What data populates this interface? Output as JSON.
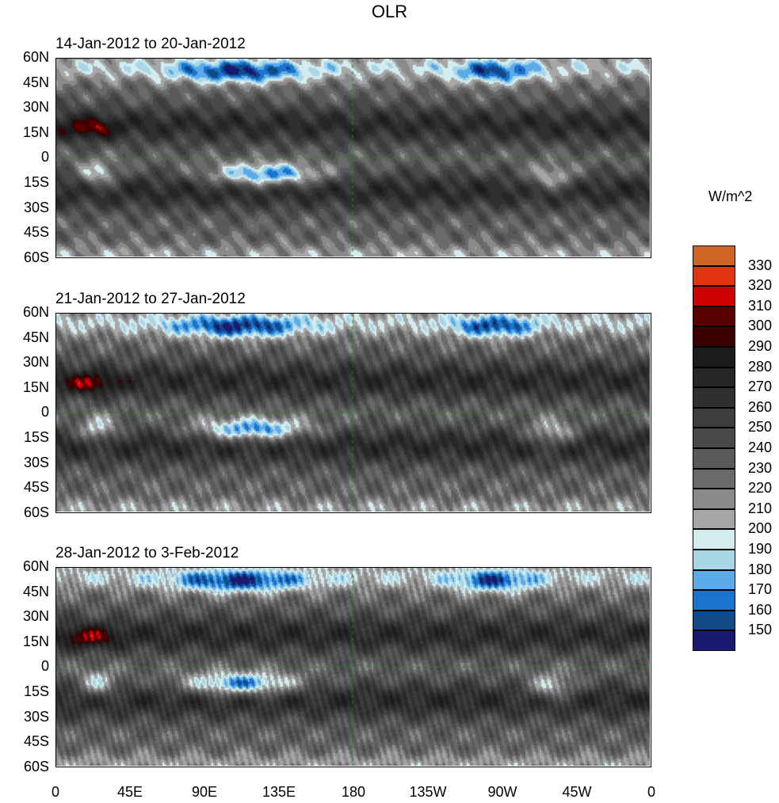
{
  "title": "OLR",
  "units": "W/m^2",
  "panels": [
    {
      "title": "14-Jan-2012 to 20-Jan-2012",
      "seed": 1
    },
    {
      "title": "21-Jan-2012 to 27-Jan-2012",
      "seed": 2
    },
    {
      "title": "28-Jan-2012 to 3-Feb-2012",
      "seed": 3
    }
  ],
  "lat_labels": [
    "60N",
    "45N",
    "30N",
    "15N",
    "0",
    "15S",
    "30S",
    "45S",
    "60S"
  ],
  "lon_labels": [
    "0",
    "45E",
    "90E",
    "135E",
    "180",
    "135W",
    "90W",
    "45W",
    "0"
  ],
  "colorbar": {
    "levels": [
      "150",
      "160",
      "170",
      "180",
      "190",
      "200",
      "210",
      "220",
      "230",
      "240",
      "250",
      "260",
      "270",
      "280",
      "290",
      "300",
      "310",
      "320",
      "330"
    ],
    "colors": [
      "#191970",
      "#124a88",
      "#1a73cc",
      "#5aabe8",
      "#a9d6e6",
      "#d2ecef",
      "#a6a6a6",
      "#8a8a8a",
      "#6a6a6a",
      "#5a5a5a",
      "#494949",
      "#3d3d3d",
      "#303030",
      "#262626",
      "#1c1c1c",
      "#3a0000",
      "#5a0000",
      "#cc0000",
      "#e0350e",
      "#cc6622"
    ]
  },
  "chart_data": {
    "type": "heatmap",
    "title": "OLR",
    "colorbar_label": "W/m^2",
    "lat_range": [
      -60,
      60
    ],
    "lon_range": [
      0,
      360
    ],
    "levels": [
      150,
      160,
      170,
      180,
      190,
      200,
      210,
      220,
      230,
      240,
      250,
      260,
      270,
      280,
      290,
      300,
      310,
      320,
      330
    ]
  }
}
